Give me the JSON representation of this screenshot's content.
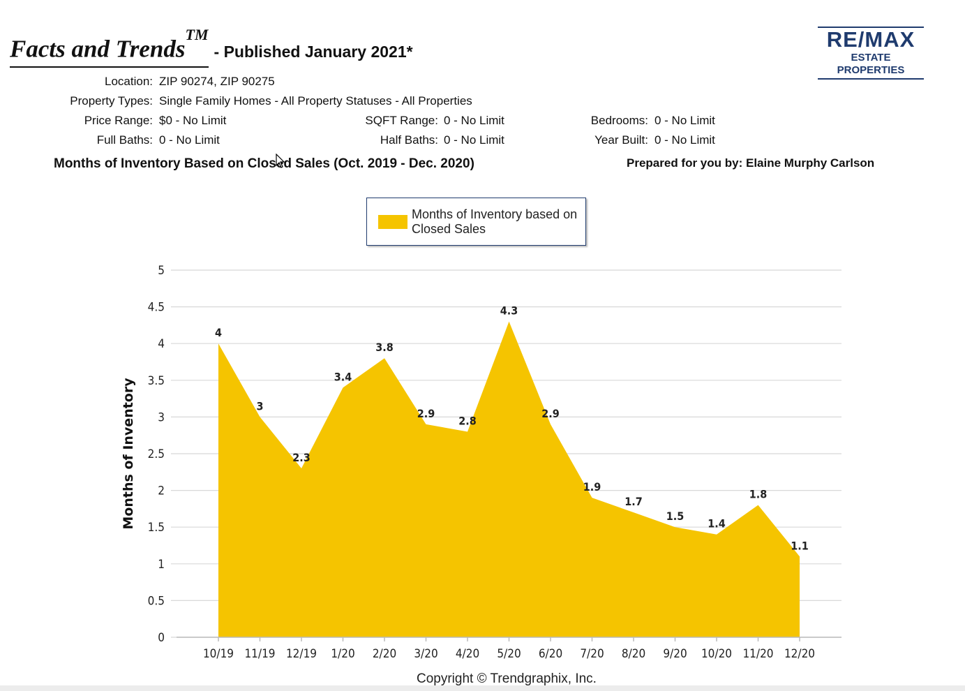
{
  "header": {
    "title": "Facts and Trends",
    "trademark": "TM",
    "subtitle": "- Published January 2021*"
  },
  "logo": {
    "top": "RE/MAX",
    "bottom": "ESTATE PROPERTIES"
  },
  "meta": {
    "location_label": "Location:",
    "location": "ZIP 90274, ZIP 90275",
    "property_types_label": "Property Types:",
    "property_types": "Single Family Homes - All Property Statuses - All Properties",
    "price_range_label": "Price Range:",
    "price_range": "$0 - No Limit",
    "sqft_range_label": "SQFT Range:",
    "sqft_range": "0 - No Limit",
    "bedrooms_label": "Bedrooms:",
    "bedrooms": "0 - No Limit",
    "full_baths_label": "Full Baths:",
    "full_baths": "0 - No Limit",
    "half_baths_label": "Half Baths:",
    "half_baths": "0 - No Limit",
    "year_built_label": "Year Built:",
    "year_built": "0 - No Limit"
  },
  "chart_heading": "Months of Inventory Based on Closed Sales (Oct. 2019 - Dec. 2020)",
  "prepared_by": "Prepared for you by: Elaine Murphy Carlson",
  "copyright": "Copyright © Trendgraphix, Inc.",
  "colors": {
    "fill": "#f5c400",
    "grid": "#d8d8d8",
    "logo": "#1f3b6e"
  },
  "chart_data": {
    "type": "area",
    "categories": [
      "10/19",
      "11/19",
      "12/19",
      "1/20",
      "2/20",
      "3/20",
      "4/20",
      "5/20",
      "6/20",
      "7/20",
      "8/20",
      "9/20",
      "10/20",
      "11/20",
      "12/20"
    ],
    "series": [
      {
        "name": "Months of Inventory based on Closed Sales",
        "values": [
          4,
          3,
          2.3,
          3.4,
          3.8,
          2.9,
          2.8,
          4.3,
          2.9,
          1.9,
          1.7,
          1.5,
          1.4,
          1.8,
          1.1
        ]
      }
    ],
    "ylabel": "Months of Inventory",
    "ylim": [
      0,
      5
    ],
    "yticks": [
      "0",
      "0.5",
      "1",
      "1.5",
      "2",
      "2.5",
      "3",
      "3.5",
      "4",
      "4.5",
      "5"
    ],
    "grid": true,
    "legend_position": "top-center"
  }
}
